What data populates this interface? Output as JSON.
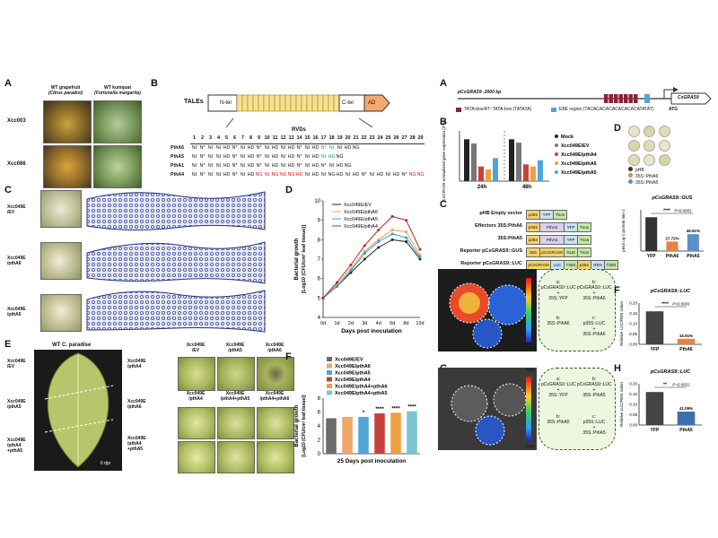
{
  "panelA_left": {
    "label": "A",
    "col1_title": "WT grapefruit",
    "col1_sub": "(Citrus paradisi)",
    "col2_title": "WT kumquat",
    "col2_sub": "(Fortunella margarita)",
    "row1": "Xcc003",
    "row2": "Xcc086"
  },
  "panelB_left": {
    "label": "B",
    "tales": "TALEs",
    "nter": "N-ter",
    "cter": "C-ter",
    "ad": "AD",
    "rvds": "RVDs",
    "numbers": [
      "1",
      "2",
      "3",
      "4",
      "5",
      "6",
      "7",
      "8",
      "9",
      "10",
      "11",
      "12",
      "13",
      "14",
      "15",
      "16",
      "17",
      "18",
      "19",
      "20",
      "21",
      "22",
      "23",
      "24",
      "25",
      "26",
      "27",
      "28",
      "29"
    ],
    "rows": [
      {
        "name": "PthA6",
        "cells": [
          "NI",
          "N*",
          "NI",
          "NI",
          "HD",
          "N*",
          "NI",
          "HD",
          "N*",
          "NI",
          "HD",
          "NI",
          "HD",
          "N*",
          "NI",
          "HD",
          "N*",
          "NI",
          "NI",
          "HD",
          "NG",
          "",
          "",
          "",
          "",
          "",
          "",
          "",
          ""
        ]
      },
      {
        "name": "PthA5",
        "cells": [
          "NI",
          "N*",
          "NI",
          "NI",
          "HD",
          "N*",
          "NI",
          "HD",
          "N*",
          "NI",
          "HD",
          "NI",
          "HD",
          "N*",
          "NI",
          "HD",
          "NI",
          "HD",
          "NG",
          "",
          "",
          "",
          "",
          "",
          "",
          "",
          "",
          "",
          ""
        ]
      },
      {
        "name": "PthA1",
        "cells": [
          "NI",
          "N*",
          "NI",
          "NI",
          "HD",
          "N*",
          "NI",
          "HD",
          "N*",
          "NI",
          "HD",
          "NI",
          "HD",
          "N*",
          "NI",
          "HD",
          "N*",
          "NI",
          "HD",
          "NG",
          "",
          "",
          "",
          "",
          "",
          "",
          "",
          "",
          ""
        ]
      },
      {
        "name": "PthA4",
        "cells": [
          "NI",
          "N*",
          "NI",
          "NI",
          "HD",
          "N*",
          "NI",
          "HD",
          "NG",
          "NI",
          "NG",
          "NS",
          "NG",
          "HD",
          "NI",
          "HD",
          "NI",
          "NG",
          "HD",
          "NI",
          "HD",
          "N*",
          "NI",
          "HD",
          "NI",
          "HD",
          "N*",
          "NG",
          "NG"
        ]
      }
    ]
  },
  "panelC_left": {
    "label": "C",
    "rows": [
      "Xcc049E\n/EV",
      "Xcc049E\n/pthA6",
      "Xcc049E\n/pthA5"
    ]
  },
  "panelD_left": {
    "label": "D",
    "legend": [
      "Xcc049E/EV",
      "Xcc049E/pthA6",
      "Xcc049E/pthA5",
      "Xcc049E/pthA4"
    ],
    "ylabel": "Bacterial growth",
    "ylabel2": "[Log10 (CFU/cm² leaf tissue)]",
    "xlabel": "Days post inoculation",
    "yticks": [
      "4",
      "5",
      "6",
      "7",
      "8",
      "9",
      "10"
    ],
    "xticks": [
      "0d",
      "1d",
      "2d",
      "3d",
      "4d",
      "6d",
      "8d",
      "12d"
    ]
  },
  "panelE_left": {
    "label": "E",
    "title": "WT C. paradise",
    "leaf_labels": [
      "Xcc049E\n/EV",
      "Xcc049E\n/pthA5",
      "Xcc049E\n/pthA4\n+pthA5"
    ],
    "dpi": "6 dpi",
    "grid_labels": [
      "Xcc049E\n/EV",
      "Xcc049E\n/pthA5",
      "Xcc049E\n/pthA6",
      "Xcc049E\n/pthA4",
      "Xcc049E\n/pthA4+pthA5",
      "Xcc049E\n/pthA4+pthA6"
    ],
    "side_labels": [
      "Xcc049E\n/pthA4",
      "Xcc049E\n/pthA6",
      "Xcc049E\n/pthA4\n+pthA5"
    ]
  },
  "panelF_left": {
    "label": "F",
    "legend": [
      "Xcc049E/EV",
      "Xcc049E/pthA6",
      "Xcc049E/pthA5",
      "Xcc049E/pthA4",
      "Xcc049E/pthA4+pthA6",
      "Xcc049E/pthA4+pthA5"
    ],
    "ylabel": "Bacterial growth",
    "ylabel2": "[Log10 (CFU/cm² leaf tissue)]",
    "xlabel": "25 Days post inoculation",
    "yticks": [
      "0",
      "2",
      "4",
      "6",
      "8"
    ],
    "stars": [
      "",
      "",
      "*",
      "****",
      "****",
      "****"
    ]
  },
  "panelA_right": {
    "label": "A",
    "promoter": "pCsGRAS9 -2000 bp",
    "atg": "ATG",
    "gene": "CsGRAS9",
    "legend1": "TATA-box/AT~TATA-box (TATATA)",
    "legend2": "EBE region (TACACACACACACACACATATAT)"
  },
  "panelB_right": {
    "label": "B",
    "ylabel": "CsGRAS9 normalized gene expression (2^-ΔΔCT)",
    "groups": [
      "24h",
      "48h"
    ],
    "legend": [
      "Mock",
      "Xcc049E/EV",
      "Xcc049E/pthA4",
      "Xcc049E/pthA6",
      "Xcc049E/pthA5"
    ]
  },
  "panelC_right": {
    "label": "C",
    "rows": [
      {
        "left": "pHB Empty vector",
        "parts": [
          "p35S",
          "YFP",
          "Tnos"
        ]
      },
      {
        "left": "Effectors 35S:PthA6",
        "parts": [
          "p35S",
          "PthA6",
          "YFP",
          "Tnos"
        ]
      },
      {
        "left": "35S:PthA5",
        "parts": [
          "p35S",
          "PthA5",
          "YFP",
          "Tnos"
        ]
      },
      {
        "left": "Reporter pCsGRAS9::GUS",
        "parts": [
          "35S",
          "pCsGRAS9",
          "GUS",
          "Tnos"
        ]
      },
      {
        "left": "Reporter pCsGRAS9::LUC",
        "parts": [
          "pCsGRAS9",
          "LUC",
          "T35S",
          "p35S",
          "REN",
          "T35S"
        ]
      }
    ]
  },
  "panelD_right": {
    "label": "D",
    "legend": [
      "pHB",
      "35S::PthA6",
      "35S::PthA5"
    ],
    "title": "pCsGRAS9::GUS",
    "ylabel": "pmol ug-1 protein min-1",
    "pval": "P<0.0001",
    "stars": "****",
    "categories": [
      "YFP",
      "PthA6",
      "PthA5"
    ],
    "pct": [
      "",
      "27.72%",
      "49.91%"
    ]
  },
  "panelE_right": {
    "label": "E",
    "high": "High",
    "low": "Low",
    "quads": [
      "a:\npCsGRAS9::LUC\n+\n35S::YFP",
      "b:\npCsGRAS9::LUC\n+\n35S::PthA6",
      "b:\n35S::PthA6",
      "c:\np35S::LUC\n+\n35S::PthA6"
    ]
  },
  "panelF_right": {
    "label": "F",
    "title": "pCsGRAS9::LUC",
    "ylabel": "Relative LUC/REN ration",
    "stars": "****",
    "pval": "P<0.0001",
    "categories": [
      "YFP",
      "PthA6"
    ],
    "pct": "16.91%",
    "yticks": [
      "0.00",
      "0.05",
      "0.10",
      "0.15",
      "0.20"
    ]
  },
  "panelG_right": {
    "label": "G",
    "high": "High",
    "low": "Low",
    "quads": [
      "a:\npCsGRAS9::LUC\n+\n35S::YFP",
      "b:\npCsGRAS9::LUC\n+\n35S::PthA5",
      "b:\n35S::PthA5",
      "c:\np35S::LUC\n+\n35S::PthA5"
    ]
  },
  "panelH_right": {
    "label": "H",
    "title": "pCsGRAS9::LUC",
    "ylabel": "Relative LUC/REN ration",
    "stars": "**",
    "pval": "P=0.0022",
    "categories": [
      "YFP",
      "PthA5"
    ],
    "pct": "41.09%",
    "yticks": [
      "0.00",
      "0.05",
      "0.10",
      "0.15",
      "0.20"
    ]
  },
  "chart_data": [
    {
      "type": "line",
      "panel": "D (left)",
      "x": [
        "0d",
        "1d",
        "2d",
        "3d",
        "4d",
        "6d",
        "8d",
        "12d"
      ],
      "series": [
        {
          "name": "Xcc049E/EV",
          "values": [
            5.0,
            5.6,
            6.3,
            7.0,
            7.6,
            8.0,
            7.9,
            7.0
          ]
        },
        {
          "name": "Xcc049E/pthA6",
          "values": [
            5.0,
            5.7,
            6.5,
            7.4,
            8.0,
            8.5,
            8.4,
            7.2
          ]
        },
        {
          "name": "Xcc049E/pthA5",
          "values": [
            5.0,
            5.6,
            6.4,
            7.3,
            7.9,
            8.3,
            8.1,
            7.1
          ]
        },
        {
          "name": "Xcc049E/pthA4",
          "values": [
            5.0,
            5.8,
            6.7,
            7.7,
            8.5,
            9.2,
            9.0,
            7.5
          ]
        }
      ],
      "ylim": [
        4,
        10
      ],
      "xlabel": "Days post inoculation",
      "ylabel": "Bacterial growth"
    },
    {
      "type": "bar",
      "panel": "F (left)",
      "categories": [
        "Xcc049E/EV",
        "Xcc049E/pthA6",
        "Xcc049E/pthA5",
        "Xcc049E/pthA4",
        "Xcc049E/pthA4+pthA6",
        "Xcc049E/pthA4+pthA5"
      ],
      "values": [
        5.1,
        5.3,
        5.3,
        5.8,
        5.9,
        6.1
      ],
      "ylim": [
        0,
        8
      ],
      "xlabel": "25 Days post inoculation",
      "ylabel": "Bacterial growth"
    },
    {
      "type": "bar",
      "panel": "B (right)",
      "categories": [
        "24h",
        "48h"
      ],
      "series": [
        {
          "name": "Mock",
          "values": [
            1.0,
            1.0
          ]
        },
        {
          "name": "Xcc049E/EV",
          "values": [
            0.9,
            0.92
          ]
        },
        {
          "name": "Xcc049E/pthA4",
          "values": [
            0.35,
            0.4
          ]
        },
        {
          "name": "Xcc049E/pthA6",
          "values": [
            0.28,
            0.35
          ]
        },
        {
          "name": "Xcc049E/pthA5",
          "values": [
            0.55,
            0.5
          ]
        }
      ],
      "ylim": [
        0,
        1.2
      ]
    },
    {
      "type": "bar",
      "panel": "D (right)",
      "categories": [
        "YFP",
        "PthA6",
        "PthA5"
      ],
      "values": [
        0.82,
        0.23,
        0.41
      ],
      "ylim": [
        0,
        1.0
      ]
    },
    {
      "type": "bar",
      "panel": "F (right)",
      "categories": [
        "YFP",
        "PthA6"
      ],
      "values": [
        0.16,
        0.027
      ],
      "ylim": [
        0,
        0.2
      ]
    },
    {
      "type": "bar",
      "panel": "H (right)",
      "categories": [
        "YFP",
        "PthA5"
      ],
      "values": [
        0.16,
        0.065
      ],
      "ylim": [
        0,
        0.2
      ]
    }
  ]
}
